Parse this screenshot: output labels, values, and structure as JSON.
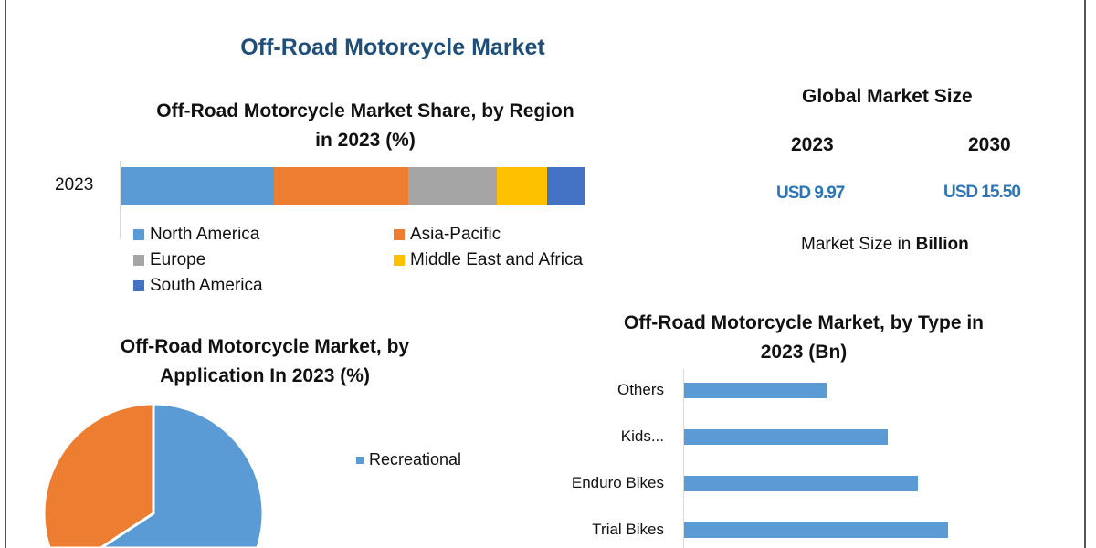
{
  "title": "Off-Road Motorcycle Market",
  "global_market": {
    "heading": "Global Market Size",
    "year_a": "2023",
    "year_b": "2030",
    "value_a": "USD 9.97",
    "value_b": "USD 15.50",
    "note_prefix": "Market Size in ",
    "note_bold": "Billion"
  },
  "chart_data": [
    {
      "type": "bar",
      "orientation": "horizontal-stacked",
      "title": "Off-Road Motorcycle Market Share, by Region in 2023 (%)",
      "title_line1": "Off-Road Motorcycle Market Share, by Region",
      "title_line2": "in 2023 (%)",
      "categories": [
        "2023"
      ],
      "series": [
        {
          "name": "North America",
          "values": [
            33
          ],
          "color": "#5b9bd5"
        },
        {
          "name": "Asia-Pacific",
          "values": [
            29
          ],
          "color": "#ed7d31"
        },
        {
          "name": "Europe",
          "values": [
            19
          ],
          "color": "#a5a5a5"
        },
        {
          "name": "Middle East and Africa",
          "values": [
            11
          ],
          "color": "#ffc000"
        },
        {
          "name": "South America",
          "values": [
            8
          ],
          "color": "#4472c4"
        }
      ],
      "legend": "bottom"
    },
    {
      "type": "pie",
      "title_line1": "Off-Road Motorcycle Market, by",
      "title_line2": "Application In 2023 (%)",
      "slices": [
        {
          "name": "Recreational",
          "value": 58,
          "color": "#5b9bd5"
        },
        {
          "value": 42,
          "color": "#ed7d31"
        }
      ],
      "legend_entries": [
        "Recreational"
      ],
      "legend": "right"
    },
    {
      "type": "bar",
      "orientation": "horizontal",
      "title_line1": "Off-Road Motorcycle Market, by Type in",
      "title_line2": "2023 (Bn)",
      "categories": [
        "Others",
        "Kids...",
        "Enduro Bikes",
        "Trial Bikes"
      ],
      "values": [
        1.56,
        2.23,
        2.56,
        2.89
      ],
      "color": "#5b9bd5",
      "xlim": [
        0,
        4
      ]
    }
  ]
}
